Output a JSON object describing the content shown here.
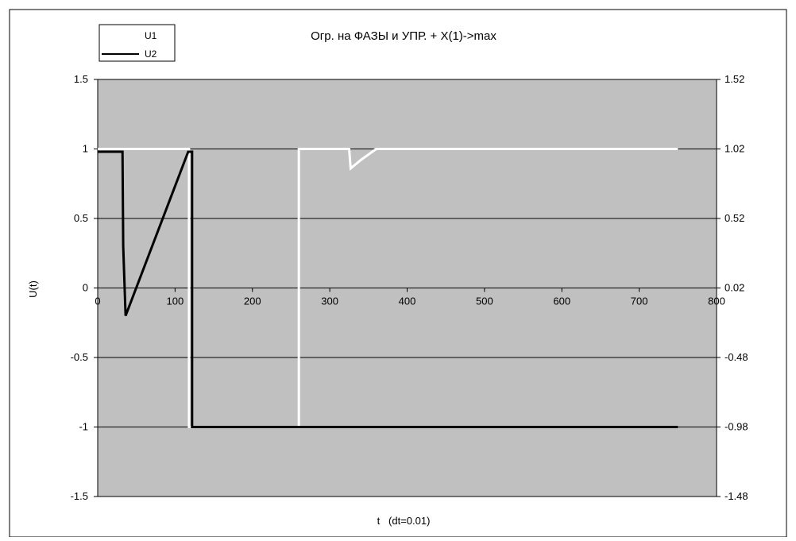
{
  "chart_data": {
    "type": "line",
    "title": "Огр. на ФАЗЫ и УПР. + X(1)->max",
    "xlabel": "t   (dt=0.01)",
    "ylabel": "U(t)",
    "xlim": [
      0,
      800
    ],
    "ylim": [
      -1.5,
      1.5
    ],
    "y2lim": [
      -1.48,
      1.52
    ],
    "x_ticks": [
      "0",
      "100",
      "200",
      "300",
      "400",
      "500",
      "600",
      "700",
      "800"
    ],
    "y_ticks": [
      "1.5",
      "1",
      "0.5",
      "0",
      "-0.5",
      "-1",
      "-1.5"
    ],
    "y2_ticks": [
      "1.52",
      "1.02",
      "0.52",
      "0.02",
      "-0.48",
      "-0.98",
      "-1.48"
    ],
    "grid": "horizontal",
    "plot_background": "#c0c0c0",
    "legend_position": "top-left",
    "series": [
      {
        "name": "U1",
        "color": "#ffffff",
        "axis": "primary",
        "x": [
          0,
          118,
          118,
          260,
          260,
          325,
          327,
          340,
          360,
          750
        ],
        "y": [
          1,
          1,
          -1,
          -1,
          1,
          1,
          0.86,
          0.92,
          1,
          1
        ]
      },
      {
        "name": "U2",
        "color": "#000000",
        "axis": "primary",
        "x": [
          0,
          32,
          33,
          33,
          36,
          117,
          122,
          122,
          750
        ],
        "y": [
          0.98,
          0.98,
          0.3,
          0.3,
          -0.2,
          0.98,
          0.98,
          -1,
          -1
        ]
      }
    ]
  }
}
